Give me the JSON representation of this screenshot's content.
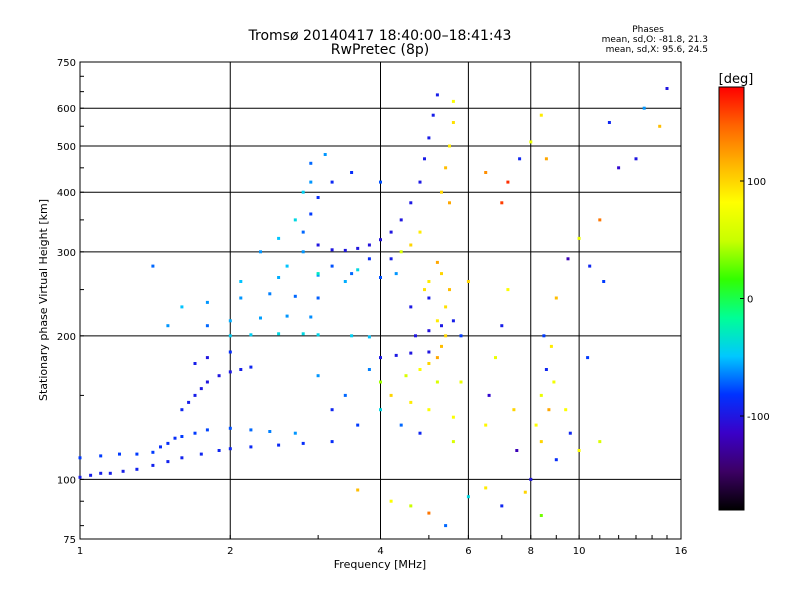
{
  "header": {
    "title": "Tromsø 20140417 18:40:00–18:41:43",
    "subtitle": "RwPretec (8p)",
    "phase_title": "Phases",
    "phase_line_o": "mean, sd,O: -81.8, 21.3",
    "phase_line_x": "mean, sd,X:  95.6, 24.5"
  },
  "colorbar": {
    "label": "[deg]",
    "ticks": [
      {
        "value": 100,
        "label": "100"
      },
      {
        "value": 0,
        "label": "0"
      },
      {
        "value": -100,
        "label": "-100"
      }
    ],
    "range": [
      -180,
      180
    ],
    "stops": [
      "#000000",
      "#3c0064",
      "#3a00c8",
      "#0032ff",
      "#00c8ff",
      "#00ff96",
      "#32ff00",
      "#c8ff00",
      "#ffff00",
      "#ffb400",
      "#ff6400",
      "#ff0000"
    ]
  },
  "chart_data": {
    "type": "scatter",
    "xlabel": "Frequency [MHz]",
    "ylabel": "Stationary phase Virtual Height [km]",
    "xscale": "log",
    "yscale": "log",
    "xlim": [
      1,
      16
    ],
    "ylim": [
      75,
      750
    ],
    "xticks": [
      {
        "value": 1,
        "label": "1"
      },
      {
        "value": 2,
        "label": "2"
      },
      {
        "value": 4,
        "label": "4"
      },
      {
        "value": 6,
        "label": "6"
      },
      {
        "value": 8,
        "label": "8"
      },
      {
        "value": 10,
        "label": "10"
      },
      {
        "value": 16,
        "label": "16"
      }
    ],
    "yticks": [
      {
        "value": 75,
        "label": "75"
      },
      {
        "value": 100,
        "label": "100"
      },
      {
        "value": 200,
        "label": "200"
      },
      {
        "value": 300,
        "label": "300"
      },
      {
        "value": 400,
        "label": "400"
      },
      {
        "value": 500,
        "label": "500"
      },
      {
        "value": 600,
        "label": "600"
      },
      {
        "value": 750,
        "label": "750"
      }
    ],
    "grid": true,
    "color_metric": "phase [deg]",
    "series": [
      {
        "points": [
          [
            1.0,
            101,
            -95
          ],
          [
            1.05,
            102,
            -95
          ],
          [
            1.1,
            103,
            -95
          ],
          [
            1.15,
            103,
            -95
          ],
          [
            1.22,
            104,
            -95
          ],
          [
            1.3,
            105,
            -92
          ],
          [
            1.4,
            107,
            -92
          ],
          [
            1.5,
            109,
            -92
          ],
          [
            1.6,
            111,
            -92
          ],
          [
            1.75,
            113,
            -90
          ],
          [
            1.9,
            115,
            -90
          ],
          [
            2.0,
            116,
            -90
          ],
          [
            2.2,
            117,
            -88
          ],
          [
            2.5,
            118,
            -88
          ],
          [
            2.8,
            119,
            -85
          ],
          [
            3.2,
            120,
            -85
          ],
          [
            1.0,
            111,
            -80
          ],
          [
            1.1,
            112,
            -80
          ],
          [
            1.2,
            113,
            -80
          ],
          [
            1.3,
            113,
            -80
          ],
          [
            1.4,
            114,
            -80
          ],
          [
            1.45,
            117,
            -85
          ],
          [
            1.5,
            119,
            -85
          ],
          [
            1.55,
            122,
            -85
          ],
          [
            1.6,
            123,
            -80
          ],
          [
            1.7,
            125,
            -80
          ],
          [
            1.8,
            127,
            -78
          ],
          [
            2.0,
            128,
            -75
          ],
          [
            2.2,
            127,
            -70
          ],
          [
            2.4,
            126,
            -65
          ],
          [
            2.7,
            125,
            -60
          ],
          [
            1.6,
            140,
            -90
          ],
          [
            1.65,
            145,
            -95
          ],
          [
            1.7,
            150,
            -95
          ],
          [
            1.75,
            155,
            -98
          ],
          [
            1.8,
            160,
            -100
          ],
          [
            1.9,
            165,
            -100
          ],
          [
            2.0,
            168,
            -98
          ],
          [
            2.1,
            170,
            -95
          ],
          [
            2.2,
            172,
            -90
          ],
          [
            1.7,
            175,
            -95
          ],
          [
            1.8,
            180,
            -100
          ],
          [
            2.0,
            185,
            -85
          ],
          [
            2.0,
            200,
            -45
          ],
          [
            2.2,
            201,
            -45
          ],
          [
            2.5,
            202,
            -40
          ],
          [
            2.8,
            202,
            -40
          ],
          [
            3.0,
            201,
            -42
          ],
          [
            3.5,
            200,
            -45
          ],
          [
            3.8,
            199,
            -50
          ],
          [
            2.0,
            215,
            -55
          ],
          [
            2.3,
            218,
            -58
          ],
          [
            2.6,
            220,
            -60
          ],
          [
            2.9,
            219,
            -62
          ],
          [
            1.8,
            235,
            -60
          ],
          [
            2.1,
            240,
            -60
          ],
          [
            2.4,
            245,
            -65
          ],
          [
            2.7,
            242,
            -70
          ],
          [
            3.0,
            240,
            -72
          ],
          [
            2.1,
            260,
            -50
          ],
          [
            2.5,
            265,
            -55
          ],
          [
            3.0,
            268,
            -60
          ],
          [
            3.5,
            270,
            -70
          ],
          [
            4.0,
            265,
            -75
          ],
          [
            4.3,
            270,
            -60
          ],
          [
            3.0,
            310,
            -100
          ],
          [
            3.2,
            303,
            -100
          ],
          [
            3.4,
            302,
            -100
          ],
          [
            3.6,
            305,
            -100
          ],
          [
            3.8,
            310,
            -102
          ],
          [
            4.0,
            318,
            -102
          ],
          [
            4.2,
            330,
            -100
          ],
          [
            4.4,
            350,
            -100
          ],
          [
            4.6,
            380,
            -98
          ],
          [
            4.8,
            420,
            -98
          ],
          [
            4.9,
            470,
            -96
          ],
          [
            5.0,
            520,
            -96
          ],
          [
            5.1,
            580,
            -95
          ],
          [
            5.2,
            640,
            -95
          ],
          [
            2.8,
            330,
            -70
          ],
          [
            2.9,
            360,
            -80
          ],
          [
            3.0,
            390,
            -85
          ],
          [
            3.2,
            420,
            -88
          ],
          [
            3.5,
            440,
            -85
          ],
          [
            4.0,
            420,
            -75
          ],
          [
            2.9,
            460,
            -70
          ],
          [
            3.1,
            480,
            -60
          ],
          [
            4.0,
            180,
            -98
          ],
          [
            4.3,
            182,
            -98
          ],
          [
            4.6,
            184,
            -100
          ],
          [
            5.0,
            185,
            -100
          ],
          [
            4.0,
            160,
            40
          ],
          [
            4.5,
            165,
            60
          ],
          [
            4.8,
            170,
            80
          ],
          [
            5.0,
            175,
            100
          ],
          [
            5.2,
            180,
            120
          ],
          [
            5.3,
            190,
            110
          ],
          [
            5.4,
            200,
            100
          ],
          [
            5.2,
            215,
            90
          ],
          [
            5.4,
            230,
            95
          ],
          [
            5.5,
            250,
            110
          ],
          [
            5.3,
            270,
            100
          ],
          [
            5.0,
            260,
            90
          ],
          [
            4.9,
            250,
            95
          ],
          [
            5.2,
            285,
            120
          ],
          [
            5.3,
            400,
            100
          ],
          [
            5.4,
            450,
            110
          ],
          [
            5.5,
            500,
            90
          ],
          [
            5.6,
            560,
            95
          ],
          [
            5.6,
            620,
            80
          ],
          [
            5.5,
            380,
            120
          ],
          [
            4.7,
            200,
            -100
          ],
          [
            5.0,
            205,
            -102
          ],
          [
            5.3,
            210,
            -98
          ],
          [
            5.6,
            215,
            -95
          ],
          [
            4.6,
            230,
            -98
          ],
          [
            5.0,
            240,
            -96
          ],
          [
            5.6,
            120,
            60
          ],
          [
            5.6,
            135,
            80
          ],
          [
            5.8,
            160,
            70
          ],
          [
            5.8,
            200,
            -80
          ],
          [
            6.0,
            260,
            100
          ],
          [
            6.5,
            130,
            85
          ],
          [
            6.6,
            150,
            -110
          ],
          [
            6.8,
            180,
            70
          ],
          [
            7.0,
            210,
            -95
          ],
          [
            7.2,
            250,
            80
          ],
          [
            7.4,
            140,
            100
          ],
          [
            7.5,
            115,
            -120
          ],
          [
            8.0,
            100,
            -100
          ],
          [
            8.2,
            130,
            80
          ],
          [
            8.4,
            150,
            70
          ],
          [
            8.6,
            170,
            -90
          ],
          [
            8.8,
            190,
            90
          ],
          [
            8.4,
            120,
            100
          ],
          [
            8.7,
            140,
            120
          ],
          [
            8.5,
            200,
            -80
          ],
          [
            8.9,
            160,
            75
          ],
          [
            9.0,
            110,
            -85
          ],
          [
            9.4,
            140,
            80
          ],
          [
            9.6,
            125,
            -90
          ],
          [
            10.0,
            115,
            80
          ],
          [
            10.4,
            180,
            -80
          ],
          [
            11.0,
            120,
            60
          ],
          [
            11.5,
            560,
            -90
          ],
          [
            12.0,
            450,
            -110
          ],
          [
            13.0,
            470,
            -100
          ],
          [
            13.5,
            600,
            -60
          ],
          [
            14.5,
            550,
            110
          ],
          [
            15.0,
            660,
            -100
          ],
          [
            9.0,
            240,
            110
          ],
          [
            9.5,
            290,
            -120
          ],
          [
            10.0,
            320,
            70
          ],
          [
            10.5,
            280,
            -90
          ],
          [
            11.0,
            350,
            140
          ],
          [
            11.2,
            260,
            -80
          ],
          [
            6.5,
            440,
            130
          ],
          [
            7.0,
            380,
            160
          ],
          [
            7.2,
            420,
            165
          ],
          [
            7.6,
            470,
            -90
          ],
          [
            8.0,
            510,
            70
          ],
          [
            8.4,
            580,
            90
          ],
          [
            8.6,
            470,
            120
          ],
          [
            3.6,
            95,
            110
          ],
          [
            4.2,
            90,
            80
          ],
          [
            4.6,
            88,
            50
          ],
          [
            5.0,
            85,
            140
          ],
          [
            5.4,
            80,
            -70
          ],
          [
            6.0,
            92,
            -40
          ],
          [
            6.5,
            96,
            90
          ],
          [
            7.0,
            88,
            -90
          ],
          [
            7.8,
            94,
            100
          ],
          [
            8.4,
            84,
            30
          ],
          [
            3.0,
            165,
            -60
          ],
          [
            3.2,
            140,
            -90
          ],
          [
            3.4,
            150,
            -70
          ],
          [
            3.6,
            130,
            -80
          ],
          [
            3.8,
            170,
            -65
          ],
          [
            4.0,
            140,
            -40
          ],
          [
            4.2,
            150,
            100
          ],
          [
            4.4,
            130,
            -70
          ],
          [
            4.6,
            145,
            90
          ],
          [
            4.8,
            125,
            -90
          ],
          [
            5.0,
            140,
            80
          ],
          [
            5.2,
            160,
            60
          ],
          [
            2.6,
            280,
            -50
          ],
          [
            2.8,
            300,
            -60
          ],
          [
            3.0,
            270,
            -30
          ],
          [
            3.2,
            280,
            -75
          ],
          [
            3.4,
            260,
            -55
          ],
          [
            3.6,
            275,
            -40
          ],
          [
            3.8,
            290,
            -85
          ],
          [
            4.2,
            290,
            -95
          ],
          [
            4.4,
            300,
            60
          ],
          [
            4.6,
            310,
            100
          ],
          [
            4.8,
            330,
            90
          ],
          [
            1.4,
            280,
            -70
          ],
          [
            1.5,
            210,
            -60
          ],
          [
            1.6,
            230,
            -50
          ],
          [
            1.8,
            210,
            -70
          ],
          [
            2.3,
            300,
            -60
          ],
          [
            2.5,
            320,
            -50
          ],
          [
            2.7,
            350,
            -40
          ],
          [
            2.8,
            400,
            -45
          ],
          [
            2.9,
            420,
            -60
          ]
        ]
      }
    ]
  }
}
